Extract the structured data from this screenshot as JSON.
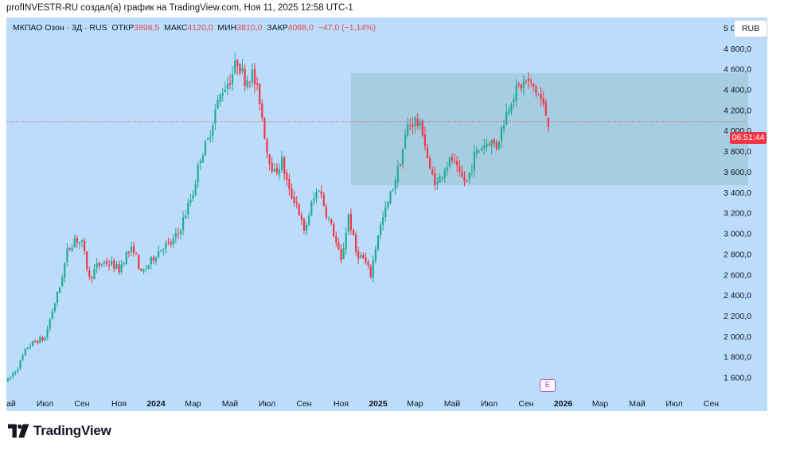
{
  "header": {
    "text": "profINVESTR-RU создал(а) график на TradingView.com, Ноя 11, 2025 12:58 UTC-1"
  },
  "legend": {
    "symbol": "МКПАО Озон · 3Д · RUS",
    "open_label": "ОТКР",
    "open_value": "3898,5",
    "high_label": "МАКС",
    "high_value": "4120,0",
    "low_label": "МИН",
    "low_value": "3810,0",
    "close_label": "ЗАКР",
    "close_value": "4088,0",
    "change": "−47,0 (−1,14%)"
  },
  "currency": "RUB",
  "countdown": "06:51:44",
  "earnings_marker": "E",
  "brand": "TradingView",
  "colors": {
    "background": "#bbdcfb",
    "up": "#22ab94",
    "down": "#f23645",
    "zone": "#9fc8d8",
    "price_line": "#f23645"
  },
  "chart_data": {
    "type": "candlestick",
    "y_axis": {
      "min": 1450,
      "max": 5100,
      "ticks": [
        "1 600,0",
        "1 800,0",
        "2 000,0",
        "2 200,0",
        "2 400,0",
        "2 600,0",
        "2 800,0",
        "3 000,0",
        "3 200,0",
        "3 400,0",
        "3 600,0",
        "3 800,0",
        "4 000,0",
        "4 200,0",
        "4 400,0",
        "4 600,0",
        "4 800,0",
        "5 000,0"
      ],
      "tick_values": [
        1600,
        1800,
        2000,
        2200,
        2400,
        2600,
        2800,
        3000,
        3200,
        3400,
        3600,
        3800,
        4000,
        4200,
        4400,
        4600,
        4800,
        5000
      ]
    },
    "x_axis": {
      "labels": [
        "ай",
        "Июл",
        "Сен",
        "Ноя",
        "2024",
        "Мар",
        "Май",
        "Июл",
        "Сен",
        "Ноя",
        "2025",
        "Мар",
        "Май",
        "Июл",
        "Сен",
        "2026",
        "Мар",
        "Май",
        "Июл",
        "Сен"
      ],
      "label_index": [
        0,
        15,
        30,
        45,
        60,
        75,
        90,
        105,
        120,
        135,
        150,
        165,
        180,
        195,
        210,
        225,
        240,
        255,
        270,
        285
      ],
      "bold_labels": [
        "2024",
        "2025",
        "2026"
      ]
    },
    "last_price": 4088,
    "zone": {
      "start_index": 139,
      "end_index": 300,
      "low": 3470,
      "high": 4560
    },
    "path_anchors": [
      [
        0,
        1570
      ],
      [
        4,
        1700
      ],
      [
        8,
        1900
      ],
      [
        12,
        1960
      ],
      [
        15,
        1980
      ],
      [
        18,
        2250
      ],
      [
        21,
        2480
      ],
      [
        24,
        2820
      ],
      [
        27,
        2950
      ],
      [
        30,
        2900
      ],
      [
        33,
        2560
      ],
      [
        36,
        2680
      ],
      [
        39,
        2720
      ],
      [
        42,
        2700
      ],
      [
        45,
        2650
      ],
      [
        48,
        2800
      ],
      [
        51,
        2850
      ],
      [
        54,
        2600
      ],
      [
        57,
        2700
      ],
      [
        60,
        2800
      ],
      [
        63,
        2880
      ],
      [
        66,
        2900
      ],
      [
        69,
        3000
      ],
      [
        72,
        3200
      ],
      [
        75,
        3400
      ],
      [
        78,
        3750
      ],
      [
        81,
        3900
      ],
      [
        84,
        4200
      ],
      [
        87,
        4400
      ],
      [
        90,
        4500
      ],
      [
        93,
        4680
      ],
      [
        96,
        4500
      ],
      [
        99,
        4550
      ],
      [
        102,
        4300
      ],
      [
        105,
        3800
      ],
      [
        108,
        3580
      ],
      [
        111,
        3700
      ],
      [
        114,
        3400
      ],
      [
        117,
        3300
      ],
      [
        120,
        3000
      ],
      [
        123,
        3280
      ],
      [
        126,
        3450
      ],
      [
        129,
        3200
      ],
      [
        132,
        3000
      ],
      [
        135,
        2720
      ],
      [
        138,
        3180
      ],
      [
        141,
        2820
      ],
      [
        144,
        2750
      ],
      [
        147,
        2600
      ],
      [
        150,
        3000
      ],
      [
        153,
        3220
      ],
      [
        156,
        3450
      ],
      [
        159,
        3700
      ],
      [
        162,
        4050
      ],
      [
        165,
        4100
      ],
      [
        168,
        4000
      ],
      [
        171,
        3600
      ],
      [
        174,
        3480
      ],
      [
        177,
        3650
      ],
      [
        180,
        3720
      ],
      [
        183,
        3550
      ],
      [
        186,
        3500
      ],
      [
        189,
        3750
      ],
      [
        192,
        3850
      ],
      [
        195,
        3900
      ],
      [
        198,
        3850
      ],
      [
        201,
        4100
      ],
      [
        204,
        4320
      ],
      [
        207,
        4420
      ],
      [
        210,
        4480
      ],
      [
        213,
        4420
      ],
      [
        216,
        4300
      ],
      [
        219,
        4088
      ]
    ],
    "candle_count": 220
  }
}
